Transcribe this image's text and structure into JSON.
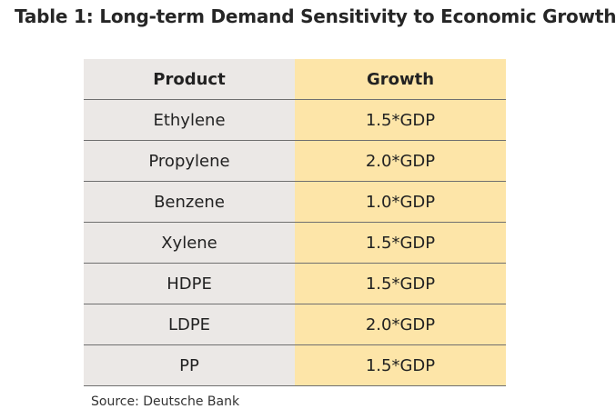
{
  "title": "Table 1: Long-term Demand Sensitivity to Economic  Growth",
  "table": {
    "headers": [
      "Product",
      "Growth"
    ],
    "rows": [
      {
        "product": "Ethylene",
        "growth": "1.5*GDP"
      },
      {
        "product": "Propylene",
        "growth": "2.0*GDP"
      },
      {
        "product": "Benzene",
        "growth": "1.0*GDP"
      },
      {
        "product": "Xylene",
        "growth": "1.5*GDP"
      },
      {
        "product": "HDPE",
        "growth": "1.5*GDP"
      },
      {
        "product": "LDPE",
        "growth": "2.0*GDP"
      },
      {
        "product": "PP",
        "growth": "1.5*GDP"
      }
    ]
  },
  "source": "Source: Deutsche Bank",
  "colors": {
    "product_column_bg": "#ebe8e6",
    "growth_column_bg": "#fde5a8",
    "row_divider": "#6f6f6f"
  }
}
